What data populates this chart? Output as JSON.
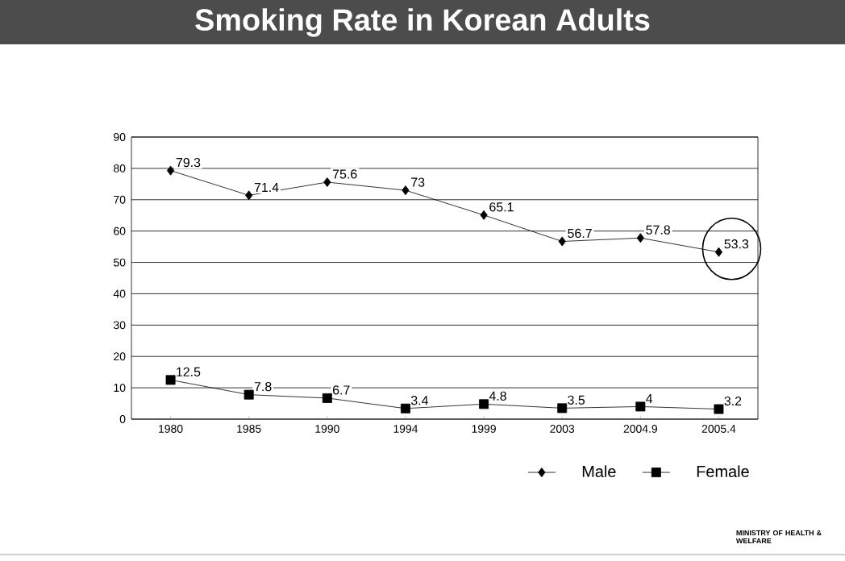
{
  "chart_data": {
    "type": "line",
    "title": "Smoking Rate in Korean Adults",
    "categories": [
      "1980",
      "1985",
      "1990",
      "1994",
      "1999",
      "2003",
      "2004.9",
      "2005.4"
    ],
    "series": [
      {
        "name": "Male",
        "color": "#000000",
        "marker": "diamond",
        "values": [
          79.3,
          71.4,
          75.6,
          73,
          65.1,
          56.7,
          57.8,
          53.3
        ]
      },
      {
        "name": "Female",
        "color": "#000000",
        "marker": "square",
        "values": [
          12.5,
          7.8,
          6.7,
          3.4,
          4.8,
          3.5,
          4,
          3.2
        ]
      }
    ],
    "ylim": [
      0,
      90
    ],
    "yticks": [
      0,
      10,
      20,
      30,
      40,
      50,
      60,
      70,
      80,
      90
    ],
    "grid": "y",
    "legend": "bottom right",
    "data_labels": true,
    "line_style": "solid",
    "annotations": [
      "MINISTRY OF HEALTH & WELFARE"
    ]
  }
}
